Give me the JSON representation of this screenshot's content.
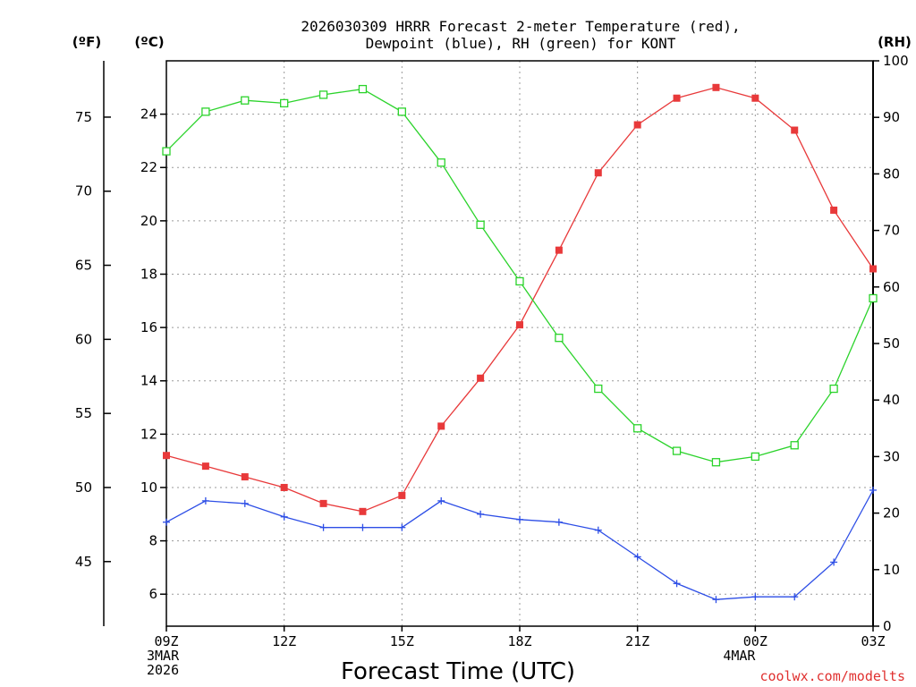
{
  "chart_data": {
    "type": "line",
    "title_line1": "2026030309 HRRR Forecast 2-meter Temperature (red),",
    "title_line2": "Dewpoint (blue), RH (green) for KONT",
    "unit_f": "(ºF)",
    "unit_c": "(ºC)",
    "unit_rh": "(RH)",
    "xlabel": "Forecast Time (UTC)",
    "credit": "coolwx.com/modelts",
    "x_hours": [
      0,
      1,
      2,
      3,
      4,
      5,
      6,
      7,
      8,
      9,
      10,
      11,
      12,
      13,
      14,
      15,
      16,
      17,
      18
    ],
    "x_ticks": [
      {
        "hour": 0,
        "lines": [
          "09Z",
          "3MAR",
          "2026"
        ]
      },
      {
        "hour": 3,
        "lines": [
          "12Z"
        ]
      },
      {
        "hour": 6,
        "lines": [
          "15Z"
        ]
      },
      {
        "hour": 9,
        "lines": [
          "18Z"
        ]
      },
      {
        "hour": 12,
        "lines": [
          "21Z"
        ]
      },
      {
        "hour": 15,
        "lines": [
          "00Z",
          "4MAR"
        ]
      },
      {
        "hour": 18,
        "lines": [
          "03Z"
        ]
      }
    ],
    "axis_c": {
      "min": 4.8,
      "max": 26.0,
      "ticks": [
        6,
        8,
        10,
        12,
        14,
        16,
        18,
        20,
        22,
        24
      ]
    },
    "axis_f": {
      "ticks": [
        45,
        50,
        55,
        60,
        65,
        70,
        75
      ]
    },
    "axis_rh": {
      "min": 0,
      "max": 100,
      "ticks": [
        0,
        10,
        20,
        30,
        40,
        50,
        60,
        70,
        80,
        90,
        100
      ]
    },
    "series": [
      {
        "name": "Temperature",
        "unit": "C",
        "color": "#e8393a",
        "marker": "filled-square",
        "values": [
          11.2,
          10.8,
          10.4,
          10.0,
          9.4,
          9.1,
          9.7,
          12.3,
          14.1,
          16.1,
          18.9,
          21.8,
          23.6,
          24.6,
          25.0,
          24.6,
          23.4,
          20.4,
          18.2
        ]
      },
      {
        "name": "Dewpoint",
        "unit": "C",
        "color": "#2d4ee6",
        "marker": "plus",
        "values": [
          8.7,
          9.5,
          9.4,
          8.9,
          8.5,
          8.5,
          8.5,
          9.5,
          9.0,
          8.8,
          8.7,
          8.4,
          7.4,
          6.4,
          5.8,
          5.9,
          5.9,
          7.2,
          9.9
        ]
      },
      {
        "name": "RH",
        "unit": "%",
        "color": "#2bd32b",
        "marker": "open-square",
        "values": [
          84,
          91,
          93,
          92.5,
          94,
          95,
          91,
          82,
          71,
          61,
          51,
          42,
          35,
          31,
          29,
          30,
          32,
          42,
          58
        ]
      }
    ]
  }
}
